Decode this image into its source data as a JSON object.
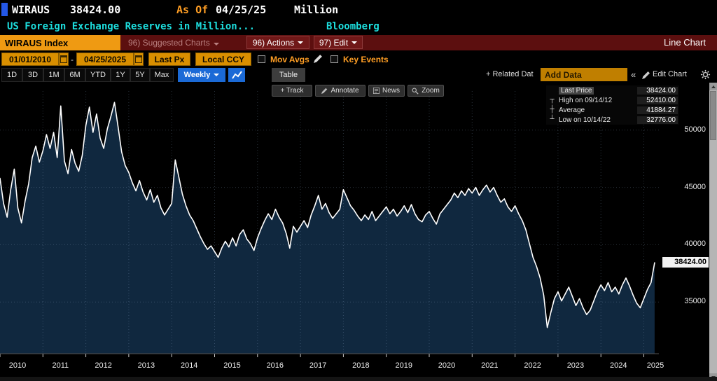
{
  "titlebar": {
    "ticker": "WIRAUS",
    "last_value": "38424.00",
    "as_of_label": "As Of",
    "as_of_date": "04/25/25",
    "unit": "Million",
    "description": "US Foreign Exchange Reserves in Million...",
    "source": "Bloomberg"
  },
  "menubar": {
    "security": "WIRAUS Index",
    "suggested_charts": "96) Suggested Charts",
    "actions": "96) Actions",
    "edit": "97) Edit",
    "chart_type": "Line Chart"
  },
  "controls": {
    "date_from": "01/01/2010",
    "date_separator": "-",
    "date_to": "04/25/2025",
    "px_type": "Last Px",
    "currency": "Local CCY",
    "mov_avgs_label": "Mov Avgs",
    "key_events_label": "Key Events"
  },
  "toolbar": {
    "periods": [
      "1D",
      "3D",
      "1M",
      "6M",
      "YTD",
      "1Y",
      "5Y",
      "Max"
    ],
    "frequency": "Weekly",
    "table_label": "Table",
    "related_data_label": "+ Related Dat",
    "add_data_placeholder": "Add Data",
    "collapse_label": "«",
    "edit_chart_label": "Edit Chart"
  },
  "chart_tools": {
    "track_label": "+ Track",
    "annotate_label": "Annotate",
    "news_label": "News",
    "zoom_label": "Zoom"
  },
  "legend": {
    "rows": [
      {
        "marker": "square",
        "label": "Last Price",
        "value": "38424.00"
      },
      {
        "marker": "high-tick",
        "label": "High on 09/14/12",
        "value": "52410.00"
      },
      {
        "marker": "avg-tick",
        "label": "Average",
        "value": "41884.27"
      },
      {
        "marker": "low-tick",
        "label": "Low on 10/14/22",
        "value": "32776.00"
      }
    ]
  },
  "icons": {
    "high_marker": "┬",
    "avg_marker": "┼",
    "low_marker": "┴"
  },
  "colors": {
    "amber": "#ff9e24",
    "cyan": "#1ddede",
    "maroon": "#5c0f0f",
    "accent_blue": "#1b6ad6",
    "line": "#ffffff",
    "fill": "#10283f"
  },
  "chart_data": {
    "type": "area",
    "title": "US Foreign Exchange Reserves in Million (WIRAUS Index)",
    "frequency": "Weekly",
    "unit": "Million",
    "x_start": 2010.0,
    "x_step": 0.0833333,
    "xlim": [
      2010,
      2025.35
    ],
    "ylim": [
      30500,
      53400
    ],
    "yticks": [
      35000,
      40000,
      45000,
      50000
    ],
    "xticks": [
      2010,
      2011,
      2012,
      2013,
      2014,
      2015,
      2016,
      2017,
      2018,
      2019,
      2020,
      2021,
      2022,
      2023,
      2024,
      2025
    ],
    "last": {
      "label": "38424.00",
      "value": 38424,
      "date": "04/25/25"
    },
    "high": {
      "value": 52410,
      "date": "09/14/12"
    },
    "average": 41884.27,
    "low": {
      "value": 32776,
      "date": "10/14/22"
    },
    "line_color": "#ffffff",
    "fill_color": "#10283f",
    "values": [
      45800,
      43600,
      42400,
      44800,
      46600,
      43200,
      41900,
      43800,
      45300,
      47600,
      48600,
      47200,
      48200,
      49600,
      48400,
      49800,
      47600,
      52100,
      47300,
      46200,
      48300,
      47100,
      46400,
      47800,
      50400,
      52000,
      49800,
      51400,
      49300,
      48400,
      50100,
      51200,
      52410,
      50300,
      48100,
      46900,
      46300,
      45400,
      44700,
      45600,
      44600,
      43900,
      44800,
      43700,
      44300,
      43200,
      42600,
      43100,
      43600,
      47400,
      45900,
      44400,
      43400,
      42600,
      42100,
      41400,
      40700,
      40100,
      39600,
      39900,
      39400,
      38900,
      39700,
      40300,
      39800,
      40600,
      39900,
      40900,
      41300,
      40500,
      40100,
      39500,
      40600,
      41400,
      42100,
      42700,
      42200,
      43100,
      42400,
      41900,
      41000,
      39700,
      41600,
      41100,
      41600,
      42100,
      41500,
      42600,
      43400,
      44300,
      43100,
      43600,
      42800,
      42300,
      42700,
      43100,
      44800,
      44100,
      43400,
      43000,
      42500,
      42100,
      42600,
      42200,
      42900,
      42100,
      42500,
      42900,
      43300,
      42700,
      43100,
      42500,
      42900,
      43400,
      42800,
      43500,
      42700,
      42200,
      42000,
      42600,
      42900,
      42300,
      41800,
      42700,
      43100,
      43500,
      43900,
      44500,
      44100,
      44700,
      44300,
      44900,
      44500,
      45000,
      44300,
      44800,
      45200,
      44600,
      45000,
      44300,
      43700,
      44000,
      43300,
      42900,
      43400,
      42700,
      42100,
      41300,
      40100,
      38900,
      38100,
      37100,
      35600,
      32776,
      34100,
      35300,
      35900,
      35100,
      35700,
      36300,
      35500,
      34700,
      35300,
      34500,
      33900,
      34300,
      35100,
      35900,
      36500,
      36000,
      36700,
      35900,
      36300,
      35700,
      36500,
      37100,
      36400,
      35600,
      34900,
      34500,
      35300,
      36100,
      36700,
      38424
    ]
  }
}
